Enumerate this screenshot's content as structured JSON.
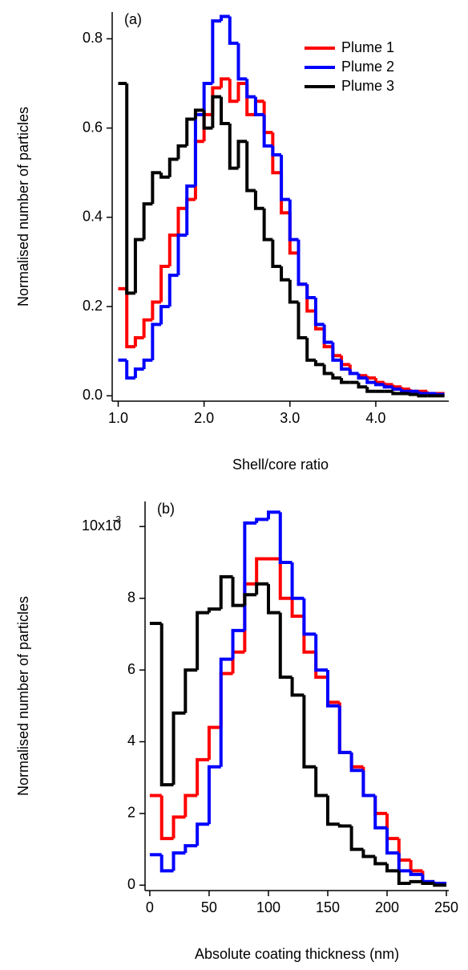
{
  "chart_data": [
    {
      "type": "histogram",
      "annotation": "(a)",
      "xlabel": "Shell/core ratio",
      "ylabel": "Normalised number of particles",
      "xlim": [
        0.93,
        4.85
      ],
      "ylim": [
        -0.012,
        0.86
      ],
      "xticks": [
        {
          "value": 1,
          "label": "1.0"
        },
        {
          "value": 2,
          "label": "2.0"
        },
        {
          "value": 3,
          "label": "3.0"
        },
        {
          "value": 4,
          "label": "4.0"
        }
      ],
      "yticks": [
        {
          "value": 0,
          "label": "0.0"
        },
        0.2,
        0.4,
        0.6,
        0.8
      ],
      "legend": "upper right",
      "bins": [
        1.0,
        1.1,
        1.2,
        1.3,
        1.4,
        1.5,
        1.6,
        1.7,
        1.8,
        1.9,
        2.0,
        2.1,
        2.2,
        2.3,
        2.4,
        2.5,
        2.6,
        2.7,
        2.8,
        2.9,
        3.0,
        3.1,
        3.2,
        3.3,
        3.4,
        3.5,
        3.6,
        3.7,
        3.8,
        3.9,
        4.0,
        4.1,
        4.2,
        4.3,
        4.4,
        4.5,
        4.6,
        4.7,
        4.8
      ],
      "series": [
        {
          "name": "Plume 1",
          "color": "#ff0000",
          "values": [
            0.24,
            0.11,
            0.13,
            0.17,
            0.21,
            0.29,
            0.36,
            0.42,
            0.44,
            0.57,
            0.63,
            0.69,
            0.71,
            0.66,
            0.7,
            0.63,
            0.66,
            0.59,
            0.5,
            0.41,
            0.32,
            0.25,
            0.19,
            0.15,
            0.11,
            0.09,
            0.07,
            0.05,
            0.045,
            0.04,
            0.03,
            0.025,
            0.02,
            0.015,
            0.01,
            0.01,
            0.005,
            0.005
          ]
        },
        {
          "name": "Plume 2",
          "color": "#0000ff",
          "values": [
            0.08,
            0.04,
            0.06,
            0.08,
            0.16,
            0.2,
            0.27,
            0.36,
            0.47,
            0.63,
            0.7,
            0.84,
            0.85,
            0.79,
            0.71,
            0.67,
            0.63,
            0.56,
            0.54,
            0.44,
            0.35,
            0.25,
            0.22,
            0.16,
            0.12,
            0.08,
            0.06,
            0.05,
            0.04,
            0.03,
            0.025,
            0.02,
            0.015,
            0.01,
            0.01,
            0.005,
            0.005,
            0.003
          ]
        },
        {
          "name": "Plume 3",
          "color": "#000000",
          "values": [
            0.7,
            0.23,
            0.35,
            0.43,
            0.5,
            0.49,
            0.53,
            0.56,
            0.62,
            0.64,
            0.6,
            0.67,
            0.61,
            0.51,
            0.57,
            0.46,
            0.42,
            0.35,
            0.29,
            0.26,
            0.21,
            0.13,
            0.08,
            0.07,
            0.05,
            0.04,
            0.03,
            0.03,
            0.02,
            0.01,
            0.01,
            0.01,
            0.005,
            0.005,
            0.003,
            0,
            0,
            0
          ]
        }
      ]
    },
    {
      "type": "histogram",
      "annotation": "(b)",
      "xlabel": "Absolute coating thickness (nm)",
      "ylabel": "Normalised number of particles",
      "xlim": [
        -4,
        252
      ],
      "ylim": [
        -0.15,
        10.7
      ],
      "xticks": [
        0,
        50,
        100,
        150,
        200,
        250
      ],
      "yticks": [
        0,
        2,
        4,
        6,
        8,
        {
          "value": 10,
          "label": "10x10",
          "sup": "-3"
        }
      ],
      "bins": [
        0,
        10,
        20,
        30,
        40,
        50,
        60,
        70,
        80,
        90,
        100,
        110,
        120,
        130,
        140,
        150,
        160,
        170,
        180,
        190,
        200,
        210,
        220,
        230,
        240,
        250
      ],
      "series": [
        {
          "name": "Plume 1",
          "color": "#ff0000",
          "values": [
            2.5,
            1.3,
            1.9,
            2.5,
            3.5,
            4.4,
            5.9,
            6.5,
            8.4,
            9.1,
            9.1,
            8.0,
            7.5,
            6.5,
            5.8,
            5.1,
            3.7,
            3.3,
            2.5,
            2.0,
            1.3,
            0.7,
            0.4,
            0.1,
            0.05
          ]
        },
        {
          "name": "Plume 2",
          "color": "#0000ff",
          "values": [
            0.85,
            0.4,
            0.9,
            1.1,
            1.7,
            3.3,
            6.3,
            7.1,
            10.1,
            10.2,
            10.4,
            9.0,
            8.0,
            7.0,
            6.0,
            5.0,
            3.7,
            3.2,
            2.5,
            1.6,
            0.9,
            0.4,
            0.3,
            0.1,
            0.05
          ]
        },
        {
          "name": "Plume 3",
          "color": "#000000",
          "values": [
            7.3,
            2.8,
            4.8,
            6.0,
            7.6,
            7.7,
            8.6,
            7.8,
            8.1,
            8.4,
            7.6,
            5.8,
            5.3,
            3.3,
            2.5,
            1.7,
            1.65,
            1.0,
            0.8,
            0.6,
            0.4,
            0.05,
            0.1,
            0.05,
            0.0
          ]
        }
      ]
    }
  ]
}
